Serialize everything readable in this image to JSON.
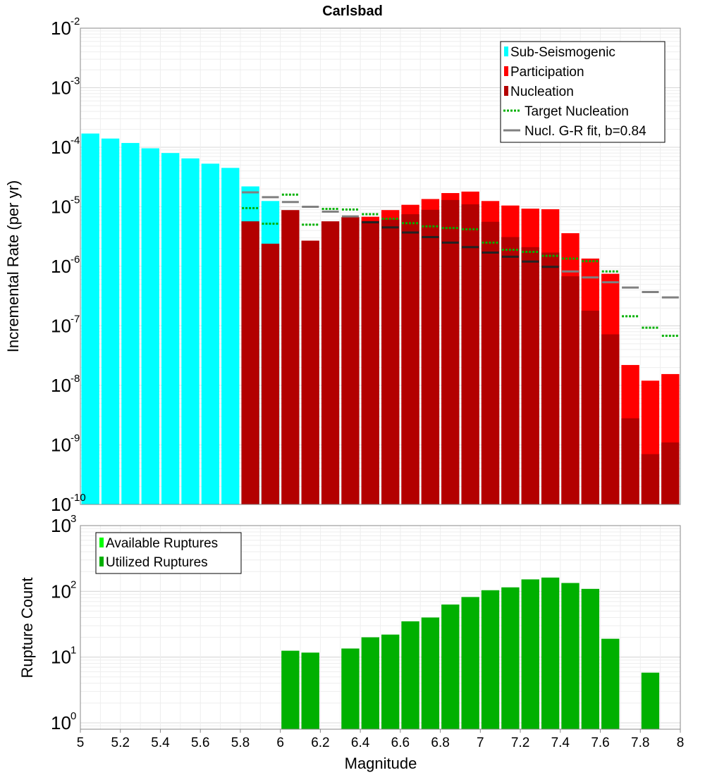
{
  "chart_data": [
    {
      "type": "bar",
      "title": "Carlsbad",
      "xlabel": "Magnitude",
      "ylabel": "Incremental Rate (per yr)",
      "yscale": "log",
      "ylim": [
        1e-10,
        0.01
      ],
      "xlim": [
        5,
        8
      ],
      "bin_width": 0.1,
      "y_tick_exponents": [
        "-10",
        "-9",
        "-8",
        "-7",
        "-6",
        "-5",
        "-4",
        "-3",
        "-2"
      ],
      "legend": {
        "position": "top-right",
        "entries": [
          {
            "label": "Sub-Seismogenic",
            "color": "#00ffff",
            "style": "bar"
          },
          {
            "label": "Participation",
            "color": "#ff0000",
            "style": "bar"
          },
          {
            "label": "Nucleation",
            "color": "#b30000",
            "style": "bar"
          },
          {
            "label": "Target Nucleation",
            "color": "#00b000",
            "style": "dotted"
          },
          {
            "label": "Nucl. G-R fit, b=0.84",
            "color": "#808080",
            "style": "line"
          }
        ]
      },
      "series": [
        {
          "name": "Sub-Seismogenic",
          "x": [
            5.05,
            5.15,
            5.25,
            5.35,
            5.45,
            5.55,
            5.65,
            5.75,
            5.85,
            5.95
          ],
          "values": [
            0.00017,
            0.00014,
            0.000118,
            9.6e-05,
            8e-05,
            6.5e-05,
            5.3e-05,
            4.5e-05,
            2.2e-05,
            1.25e-05
          ]
        },
        {
          "name": "Participation",
          "x": [
            6.45,
            6.55,
            6.65,
            6.75,
            6.85,
            6.95,
            7.05,
            7.15,
            7.25,
            7.35,
            7.45,
            7.55,
            7.65,
            7.75,
            7.85,
            7.95
          ],
          "values": [
            6.8e-06,
            8.8e-06,
            1.08e-05,
            1.35e-05,
            1.7e-05,
            1.8e-05,
            1.25e-05,
            1.05e-05,
            9.3e-06,
            9.1e-06,
            3.6e-06,
            1.35e-06,
            7.5e-07,
            2.2e-08,
            1.2e-08,
            1.55e-08
          ]
        },
        {
          "name": "Nucleation",
          "x": [
            5.85,
            5.95,
            6.05,
            6.15,
            6.25,
            6.35,
            6.45,
            6.55,
            6.65,
            6.75,
            6.85,
            6.95,
            7.05,
            7.15,
            7.25,
            7.35,
            7.45,
            7.55,
            7.65,
            7.75,
            7.85,
            7.95
          ],
          "values": [
            5.7e-06,
            2.4e-06,
            8.8e-06,
            2.7e-06,
            5.7e-06,
            6.7e-06,
            5.8e-06,
            6.1e-06,
            7.5e-06,
            8.9e-06,
            1.3e-05,
            1.1e-05,
            5.6e-06,
            3.1e-06,
            2.1e-06,
            1.7e-06,
            6.8e-07,
            1.8e-07,
            7.2e-08,
            2.8e-09,
            7e-10,
            1.1e-09
          ]
        },
        {
          "name": "Target Nucleation",
          "x": [
            5.85,
            5.95,
            6.05,
            6.15,
            6.25,
            6.35,
            6.45,
            6.55,
            6.65,
            6.75,
            6.85,
            6.95,
            7.05,
            7.15,
            7.25,
            7.35,
            7.45,
            7.55,
            7.65,
            7.75,
            7.85,
            7.95
          ],
          "values": [
            9.5e-06,
            5.2e-06,
            1.6e-05,
            5e-06,
            9.2e-06,
            9e-06,
            7.5e-06,
            6.3e-06,
            5.3e-06,
            4.7e-06,
            4.4e-06,
            4.2e-06,
            2.5e-06,
            1.9e-06,
            1.75e-06,
            1.5e-06,
            1.35e-06,
            1.22e-06,
            8.2e-07,
            1.45e-07,
            9.3e-08,
            6.8e-08
          ]
        },
        {
          "name": "Nucl. G-R fit, b=0.84",
          "x": [
            5.85,
            5.95,
            6.05,
            6.15,
            6.25,
            6.35,
            6.45,
            6.55,
            6.65,
            6.75,
            6.85,
            6.95,
            7.05,
            7.15,
            7.25,
            7.35,
            7.45,
            7.55,
            7.65,
            7.75,
            7.85,
            7.95
          ],
          "values": [
            1.75e-05,
            1.45e-05,
            1.2e-05,
            1e-05,
            8.3e-06,
            6.9e-06,
            5.5e-06,
            4.5e-06,
            3.7e-06,
            3.1e-06,
            2.5e-06,
            2.1e-06,
            1.7e-06,
            1.45e-06,
            1.2e-06,
            9.8e-07,
            8.2e-07,
            6.5e-07,
            5.4e-07,
            4.4e-07,
            3.7e-07,
            3e-07
          ]
        }
      ]
    },
    {
      "type": "bar",
      "title": "",
      "xlabel": "Magnitude",
      "ylabel": "Rupture Count",
      "yscale": "log",
      "ylim": [
        0.8,
        1000
      ],
      "xlim": [
        5,
        8
      ],
      "bin_width": 0.1,
      "x_ticks": [
        "5",
        "5.2",
        "5.4",
        "5.6",
        "5.8",
        "6",
        "6.2",
        "6.4",
        "6.6",
        "6.8",
        "7",
        "7.2",
        "7.4",
        "7.6",
        "7.8",
        "8"
      ],
      "y_tick_exponents": [
        "0",
        "1",
        "2",
        "3"
      ],
      "legend": {
        "position": "top-left",
        "entries": [
          {
            "label": "Available Ruptures",
            "color": "#00ff00",
            "style": "bar"
          },
          {
            "label": "Utilized Ruptures",
            "color": "#00b000",
            "style": "bar"
          }
        ]
      },
      "series": [
        {
          "name": "Utilized Ruptures",
          "x": [
            6.05,
            6.15,
            6.35,
            6.45,
            6.55,
            6.65,
            6.75,
            6.85,
            6.95,
            7.05,
            7.15,
            7.25,
            7.35,
            7.45,
            7.55,
            7.65,
            7.85
          ],
          "values": [
            12.5,
            11.7,
            13.5,
            20,
            22,
            35,
            40,
            63,
            82,
            104,
            115,
            152,
            162,
            134,
            109,
            19,
            5.8
          ]
        }
      ]
    }
  ]
}
